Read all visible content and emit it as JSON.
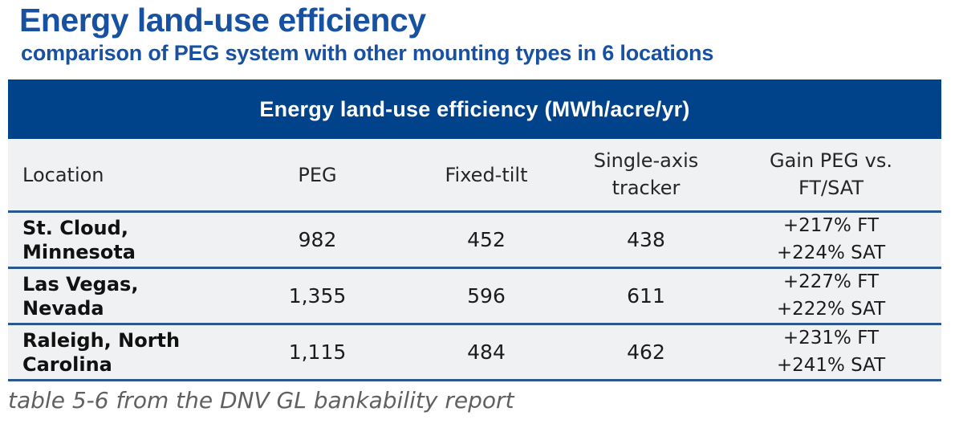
{
  "page": {
    "title": "Energy land-use efficiency",
    "subtitle": "comparison of PEG system with other mounting types in 6 locations",
    "caption": "table 5-6 from the DNV GL bankability report"
  },
  "colors": {
    "title_blue": "#17519f",
    "table_header_blue": "#01438b",
    "separator_blue": "#2a578d",
    "row_background": "#f0f1f2",
    "caption_gray": "#5f6062"
  },
  "chart_data": {
    "type": "table",
    "title": "Energy land-use efficiency (MWh/acre/yr)",
    "columns": [
      "Location",
      "PEG",
      "Fixed-tilt",
      "Single-axis\ntracker",
      "Gain PEG vs.\nFT/SAT"
    ],
    "rows": [
      {
        "location": "St. Cloud,\nMinnesota",
        "peg": "982",
        "fixed_tilt": "452",
        "single_axis_tracker": "438",
        "gain": "+217% FT\n+224% SAT"
      },
      {
        "location": "Las Vegas,\nNevada",
        "peg": "1,355",
        "fixed_tilt": "596",
        "single_axis_tracker": "611",
        "gain": "+227% FT\n+222% SAT"
      },
      {
        "location": "Raleigh, North\nCarolina",
        "peg": "1,115",
        "fixed_tilt": "484",
        "single_axis_tracker": "462",
        "gain": "+231% FT\n+241% SAT"
      }
    ]
  }
}
